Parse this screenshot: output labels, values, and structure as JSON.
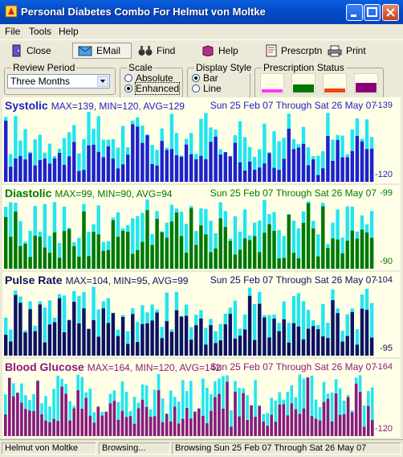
{
  "window": {
    "title": "Personal Diabetes Combo For Helmut von Moltke",
    "colors": {
      "titlebar": "#0549c6",
      "panel_bg": "#ffffe8"
    }
  },
  "menu": [
    {
      "label": "File"
    },
    {
      "label": "Tools"
    },
    {
      "label": "Help"
    }
  ],
  "toolbar": [
    {
      "label": "Close",
      "icon": "close-door-icon"
    },
    {
      "label": "EMail",
      "icon": "email-icon"
    },
    {
      "label": "Find",
      "icon": "binoculars-icon"
    },
    {
      "label": "Help",
      "icon": "help-book-icon"
    },
    {
      "label": "Prescrptn",
      "icon": "prescription-icon"
    },
    {
      "label": "Print",
      "icon": "printer-icon"
    }
  ],
  "review_period": {
    "label": "Review Period",
    "value": "Three Months"
  },
  "scale": {
    "label": "Scale",
    "options": [
      "Absolute",
      "Enhanced"
    ],
    "selected": "Enhanced"
  },
  "display_style": {
    "label": "Display Style",
    "options": [
      "Bar",
      "Line"
    ],
    "selected": "Bar"
  },
  "prescription_status": {
    "label": "Prescription Status",
    "swatches": [
      "#ff33ff",
      "#007700",
      "#ee4411",
      "#880077"
    ]
  },
  "panels": {
    "systolic": {
      "name": "Systolic",
      "stats": "MAX=139, MIN=120, AVG=129",
      "range": "Sun 25 Feb 07 Through Sat 26 May 07",
      "ymax": "-139",
      "ymin": "-120",
      "color": "#2020cc",
      "name_color": "#2020cc",
      "stats_color": "#2020cc",
      "scale_color": "#2020cc"
    },
    "diastolic": {
      "name": "Diastolic",
      "stats": "MAX=99, MIN=90, AVG=94",
      "range": "Sun 25 Feb 07 Through Sat 26 May 07",
      "ymax": "-99",
      "ymin": "-90",
      "color": "#007700",
      "name_color": "#007700",
      "stats_color": "#007700",
      "scale_color": "#007700"
    },
    "pulse": {
      "name": "Pulse Rate",
      "stats": "MAX=104, MIN=95, AVG=99",
      "range": "Sun 25 Feb 07 Through Sat 26 May 07",
      "ymax": "-104",
      "ymin": "-95",
      "color": "#101060",
      "name_color": "#101060",
      "stats_color": "#101060",
      "scale_color": "#101060"
    },
    "glucose": {
      "name": "Blood Glucose",
      "stats": "MAX=164, MIN=120, AVG=142",
      "range": "Sun 25 Feb 07 Through Sat 26 May 07",
      "ymax": "-164",
      "ymin": "-120",
      "color": "#8b1a7a",
      "name_color": "#8b1a7a",
      "stats_color": "#8b1a7a",
      "scale_color": "#8b1a7a"
    }
  },
  "statusbar": {
    "user": "Helmut von Moltke",
    "state": "Browsing...",
    "info": "Browsing Sun 25 Feb 07 Through Sat 26 May 07"
  }
}
